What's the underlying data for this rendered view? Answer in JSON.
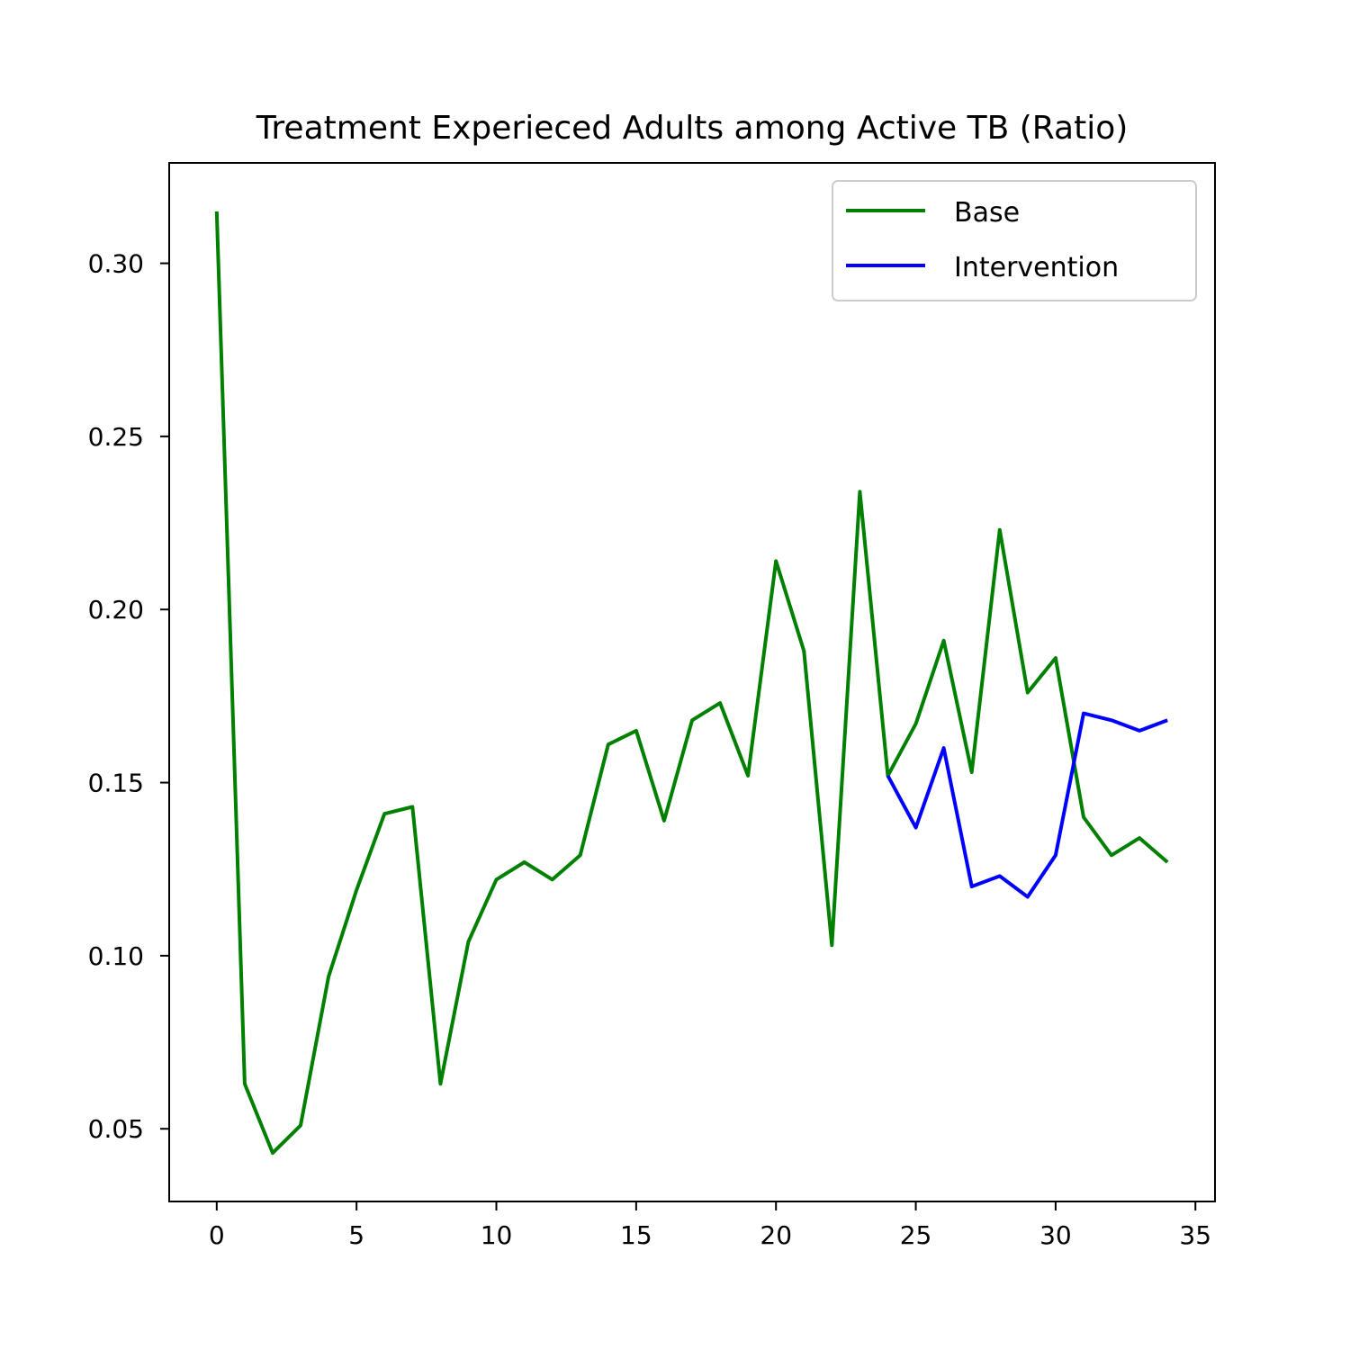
{
  "chart_data": {
    "type": "line",
    "title": "Treatment Experieced Adults among Active TB (Ratio)",
    "xlabel": "",
    "ylabel": "",
    "xlim": [
      -1.7,
      35.7
    ],
    "ylim": [
      0.029,
      0.329
    ],
    "xticks": [
      0,
      5,
      10,
      15,
      20,
      25,
      30,
      35
    ],
    "xtick_labels": [
      "0",
      "5",
      "10",
      "15",
      "20",
      "25",
      "30",
      "35"
    ],
    "yticks": [
      0.05,
      0.1,
      0.15,
      0.2,
      0.25,
      0.3
    ],
    "ytick_labels": [
      "0.05",
      "0.10",
      "0.15",
      "0.20",
      "0.25",
      "0.30"
    ],
    "grid": false,
    "legend_position": "top-right",
    "series": [
      {
        "name": "Base",
        "color": "#008000",
        "x": [
          0,
          1,
          2,
          3,
          4,
          5,
          6,
          7,
          8,
          9,
          10,
          11,
          12,
          13,
          14,
          15,
          16,
          17,
          18,
          19,
          20,
          21,
          22,
          23,
          24,
          25,
          26,
          27,
          28,
          29,
          30,
          31,
          32,
          33,
          34
        ],
        "values": [
          0.315,
          0.063,
          0.043,
          0.051,
          0.094,
          0.119,
          0.141,
          0.143,
          0.063,
          0.104,
          0.122,
          0.127,
          0.122,
          0.129,
          0.161,
          0.165,
          0.139,
          0.168,
          0.173,
          0.152,
          0.214,
          0.188,
          0.103,
          0.234,
          0.152,
          0.167,
          0.191,
          0.153,
          0.223,
          0.176,
          0.186,
          0.14,
          0.129,
          0.134,
          0.127
        ]
      },
      {
        "name": "Intervention",
        "color": "#0000ff",
        "x": [
          24,
          25,
          26,
          27,
          28,
          29,
          30,
          31,
          32,
          33,
          34
        ],
        "values": [
          0.152,
          0.137,
          0.16,
          0.12,
          0.123,
          0.117,
          0.129,
          0.17,
          0.168,
          0.165,
          0.168
        ]
      }
    ]
  }
}
